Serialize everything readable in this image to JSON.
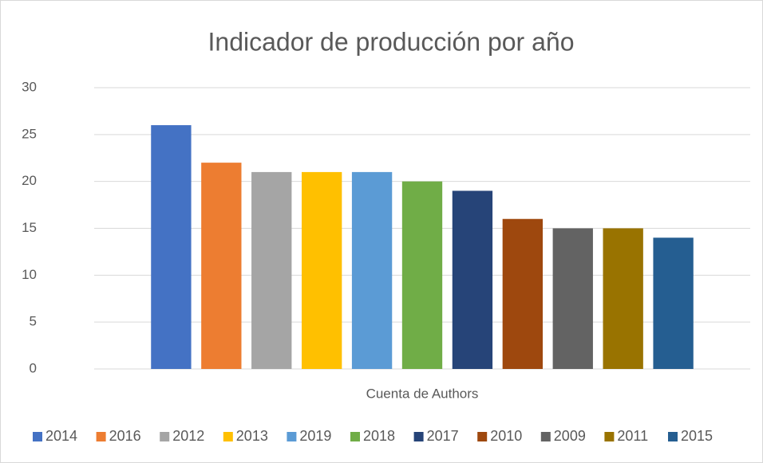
{
  "chart_data": {
    "type": "bar",
    "title": "Indicador de producción por año",
    "categories": [
      "Cuenta de Authors"
    ],
    "series": [
      {
        "name": "2014",
        "color": "#4472c4",
        "values": [
          26
        ]
      },
      {
        "name": "2016",
        "color": "#ed7d31",
        "values": [
          22
        ]
      },
      {
        "name": "2012",
        "color": "#a5a5a5",
        "values": [
          21
        ]
      },
      {
        "name": "2013",
        "color": "#ffc000",
        "values": [
          21
        ]
      },
      {
        "name": "2019",
        "color": "#5b9bd5",
        "values": [
          21
        ]
      },
      {
        "name": "2018",
        "color": "#70ad47",
        "values": [
          20
        ]
      },
      {
        "name": "2017",
        "color": "#264478",
        "values": [
          19
        ]
      },
      {
        "name": "2010",
        "color": "#9e480e",
        "values": [
          16
        ]
      },
      {
        "name": "2009",
        "color": "#636363",
        "values": [
          15
        ]
      },
      {
        "name": "2011",
        "color": "#997300",
        "values": [
          15
        ]
      },
      {
        "name": "2015",
        "color": "#255e91",
        "values": [
          14
        ]
      }
    ],
    "ylim": [
      0,
      30
    ],
    "yticks": [
      0,
      5,
      10,
      15,
      20,
      25,
      30
    ],
    "grid": true,
    "legend": "bottom"
  }
}
